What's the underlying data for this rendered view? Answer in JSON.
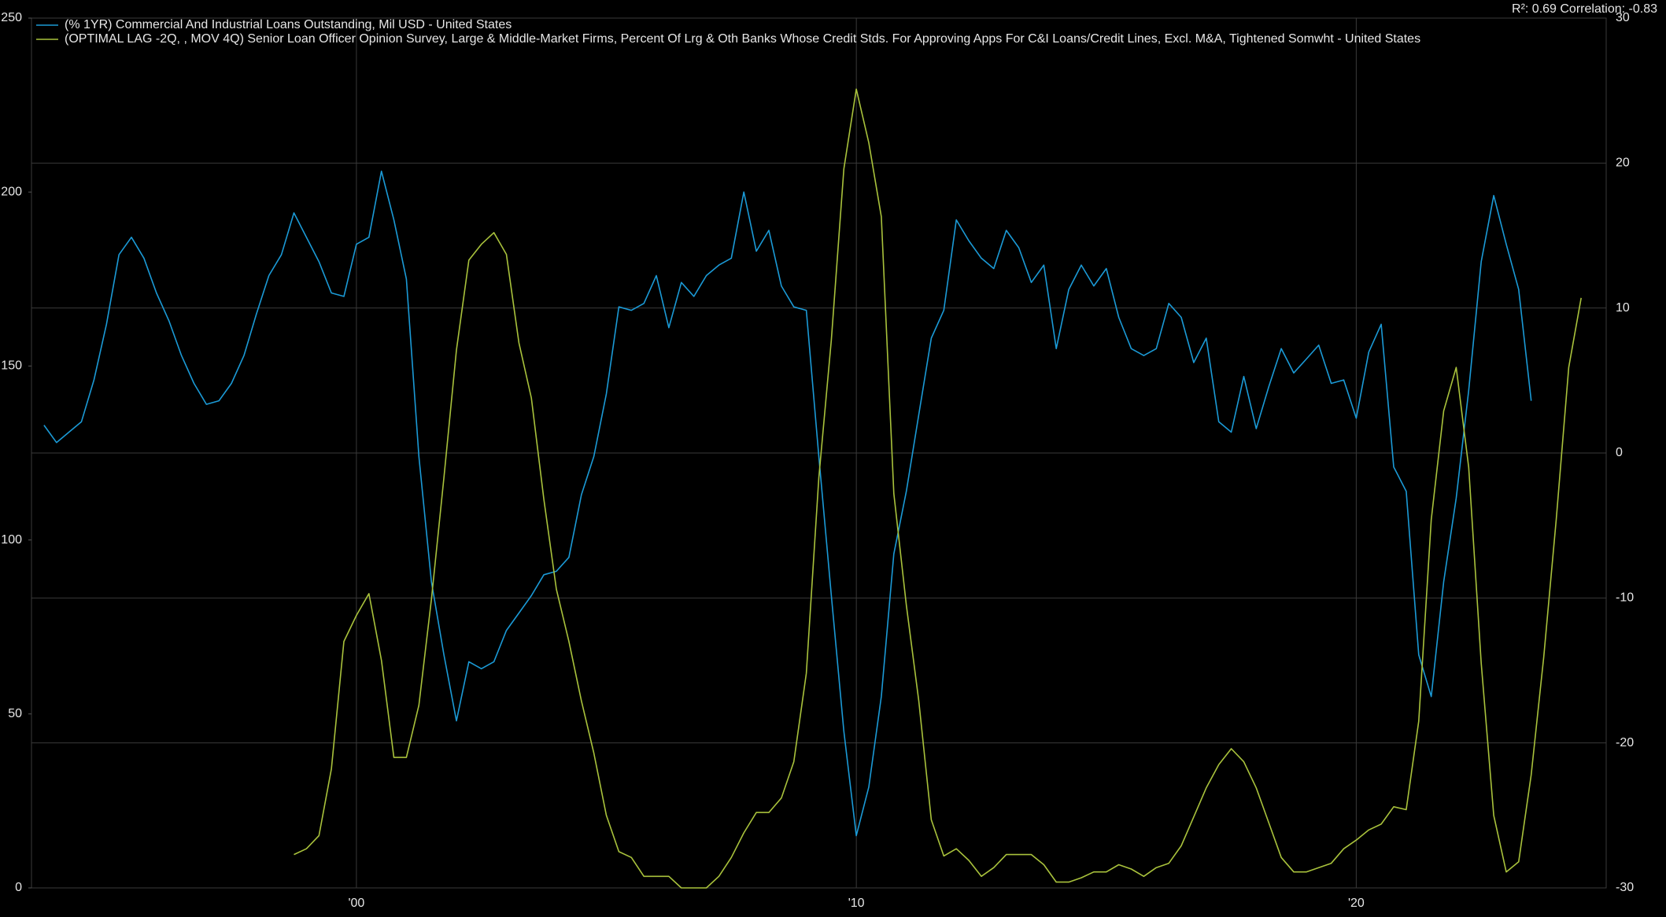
{
  "chart_data": {
    "type": "line",
    "annotation": "R²: 0.69 Correlation: -0.83",
    "xlim": [
      1993.5,
      2025.0
    ],
    "xticks": [
      {
        "value": 2000,
        "label": "'00"
      },
      {
        "value": 2010,
        "label": "'10"
      },
      {
        "value": 2020,
        "label": "'20"
      }
    ],
    "ylim": [
      0,
      250
    ],
    "yticks": [
      0,
      50,
      100,
      150,
      200,
      250
    ],
    "y2lim": [
      -30,
      30
    ],
    "y2ticks": [
      -30,
      -20,
      -10,
      0,
      10,
      20,
      30
    ],
    "grid": true,
    "legend": "top-left",
    "series": [
      {
        "name": "(% 1YR) Commercial And Industrial Loans Outstanding, Mil USD - United States",
        "color": "#1b9ad6",
        "axis": "y",
        "x": [
          1993.75,
          1994,
          1994.25,
          1994.5,
          1994.75,
          1995,
          1995.25,
          1995.5,
          1995.75,
          1996,
          1996.25,
          1996.5,
          1996.75,
          1997,
          1997.25,
          1997.5,
          1997.75,
          1998,
          1998.25,
          1998.5,
          1998.75,
          1999,
          1999.25,
          1999.5,
          1999.75,
          2000,
          2000.25,
          2000.5,
          2000.75,
          2001,
          2001.25,
          2001.5,
          2001.75,
          2002,
          2002.25,
          2002.5,
          2002.75,
          2003,
          2003.25,
          2003.5,
          2003.75,
          2004,
          2004.25,
          2004.5,
          2004.75,
          2005,
          2005.25,
          2005.5,
          2005.75,
          2006,
          2006.25,
          2006.5,
          2006.75,
          2007,
          2007.25,
          2007.5,
          2007.75,
          2008,
          2008.25,
          2008.5,
          2008.75,
          2009,
          2009.25,
          2009.5,
          2009.75,
          2010,
          2010.25,
          2010.5,
          2010.75,
          2011,
          2011.25,
          2011.5,
          2011.75,
          2012,
          2012.25,
          2012.5,
          2012.75,
          2013,
          2013.25,
          2013.5,
          2013.75,
          2014,
          2014.25,
          2014.5,
          2014.75,
          2015,
          2015.25,
          2015.5,
          2015.75,
          2016,
          2016.25,
          2016.5,
          2016.75,
          2017,
          2017.25,
          2017.5,
          2017.75,
          2018,
          2018.25,
          2018.5,
          2018.75,
          2019,
          2019.25,
          2019.5,
          2019.75,
          2020,
          2020.25,
          2020.5,
          2020.75,
          2021,
          2021.25,
          2021.5,
          2021.75,
          2022,
          2022.25,
          2022.5,
          2022.75,
          2023,
          2023.25,
          2023.5
        ],
        "values": [
          133,
          128,
          131,
          134,
          146,
          162,
          182,
          187,
          181,
          171,
          163,
          153,
          145,
          139,
          140,
          145,
          153,
          165,
          176,
          182,
          194,
          187,
          180,
          171,
          170,
          185,
          187,
          206,
          192,
          175,
          124,
          88,
          67,
          48,
          65,
          63,
          65,
          74,
          79,
          84,
          90,
          91,
          95,
          113,
          124,
          142,
          167,
          166,
          168,
          176,
          161,
          174,
          170,
          176,
          179,
          181,
          200,
          183,
          189,
          173,
          167,
          166,
          124,
          84,
          45,
          15,
          29,
          55,
          96,
          114,
          136,
          158,
          166,
          192,
          186,
          181,
          178,
          189,
          184,
          174,
          179,
          155,
          172,
          179,
          173,
          178,
          164,
          155,
          153,
          155,
          168,
          164,
          151,
          158,
          134,
          131,
          147,
          132,
          144,
          155,
          148,
          152,
          156,
          145,
          146,
          135,
          154,
          162,
          121,
          114,
          67,
          55,
          88,
          112,
          143,
          180,
          199,
          185,
          172,
          140
        ]
      },
      {
        "name": "(OPTIMAL LAG -2Q,  , MOV 4Q) Senior Loan Officer Opinion Survey, Large & Middle-Market Firms, Percent Of Lrg & Oth Banks Whose Credit Stds. For Approving Apps For C&I Loans/Credit Lines, Excl. M&A, Tightened Somwht - United States",
        "color": "#a9c23c",
        "axis": "y2",
        "x": [
          1998.75,
          1999,
          1999.25,
          1999.5,
          1999.75,
          2000,
          2000.25,
          2000.5,
          2000.75,
          2001,
          2001.25,
          2001.5,
          2001.75,
          2002,
          2002.25,
          2002.5,
          2002.75,
          2003,
          2003.25,
          2003.5,
          2003.75,
          2004,
          2004.25,
          2004.5,
          2004.75,
          2005,
          2005.25,
          2005.5,
          2005.75,
          2006,
          2006.25,
          2006.5,
          2006.75,
          2007,
          2007.25,
          2007.5,
          2007.75,
          2008,
          2008.25,
          2008.5,
          2008.75,
          2009,
          2009.25,
          2009.5,
          2009.75,
          2010,
          2010.25,
          2010.5,
          2010.75,
          2011,
          2011.25,
          2011.5,
          2011.75,
          2012,
          2012.25,
          2012.5,
          2012.75,
          2013,
          2013.25,
          2013.5,
          2013.75,
          2014,
          2014.25,
          2014.5,
          2014.75,
          2015,
          2015.25,
          2015.5,
          2015.75,
          2016,
          2016.25,
          2016.5,
          2016.75,
          2017,
          2017.25,
          2017.5,
          2017.75,
          2018,
          2018.25,
          2018.5,
          2018.75,
          2019,
          2019.25,
          2019.5,
          2019.75,
          2020,
          2020.25,
          2020.5,
          2020.75,
          2021,
          2021.25,
          2021.5,
          2021.75,
          2022,
          2022.25,
          2022.5,
          2022.75,
          2023,
          2023.25,
          2023.5,
          2023.75,
          2024,
          2024.25,
          2024.5
        ],
        "values": [
          -27.7,
          -27.3,
          -26.4,
          -21.8,
          -13.0,
          -11.2,
          -9.7,
          -14.3,
          -21.0,
          -21.0,
          -17.4,
          -10.1,
          -1.7,
          7.1,
          13.3,
          14.4,
          15.2,
          13.7,
          7.6,
          3.8,
          -3.2,
          -9.4,
          -13.0,
          -17.1,
          -20.7,
          -25.0,
          -27.5,
          -27.9,
          -29.2,
          -29.2,
          -29.2,
          -30,
          -30,
          -30,
          -29.2,
          -27.9,
          -26.2,
          -24.8,
          -24.8,
          -23.8,
          -21.3,
          -15.2,
          -1.7,
          7.8,
          19.6,
          25.1,
          21.4,
          16.3,
          -2.8,
          -10.5,
          -17.1,
          -25.3,
          -27.8,
          -27.3,
          -28.1,
          -29.2,
          -28.6,
          -27.7,
          -27.7,
          -27.7,
          -28.4,
          -29.6,
          -29.6,
          -29.3,
          -28.9,
          -28.9,
          -28.4,
          -28.7,
          -29.2,
          -28.6,
          -28.3,
          -27.1,
          -25.1,
          -23.1,
          -21.5,
          -20.4,
          -21.3,
          -23.1,
          -25.5,
          -27.9,
          -28.9,
          -28.9,
          -28.6,
          -28.3,
          -27.3,
          -26.7,
          -26.0,
          -25.6,
          -24.4,
          -24.6,
          -18.5,
          -4.6,
          2.9,
          5.9,
          -1.0,
          -14.5,
          -25.0,
          -28.9,
          -28.2,
          -22.2,
          -14.1,
          -4.6,
          5.9,
          10.7
        ]
      }
    ]
  }
}
